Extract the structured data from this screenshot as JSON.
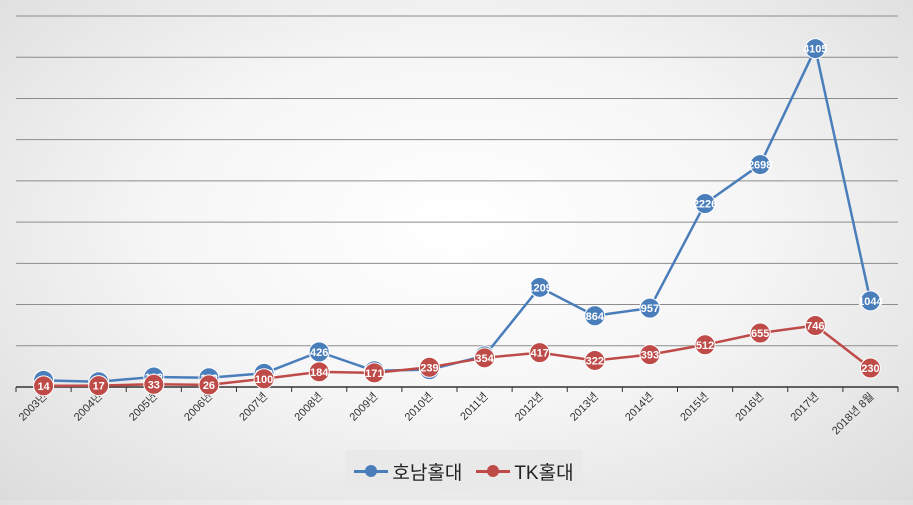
{
  "chart_data": {
    "type": "line",
    "categories": [
      "2003년",
      "2004년",
      "2005년",
      "2006년",
      "2007년",
      "2008년",
      "2009년",
      "2010년",
      "2011년",
      "2012년",
      "2013년",
      "2014년",
      "2015년",
      "2016년",
      "2017년",
      "2018년 8월"
    ],
    "series": [
      {
        "name": "호남홀대",
        "color": "#4a7ebb",
        "values": [
          81,
          64,
          122,
          112,
          166,
          426,
          197,
          211,
          378,
          1209,
          864,
          957,
          2226,
          2698,
          4105,
          1044
        ]
      },
      {
        "name": "TK홀대",
        "color": "#be4b48",
        "values": [
          14,
          17,
          33,
          26,
          100,
          184,
          171,
          239,
          354,
          417,
          322,
          393,
          512,
          655,
          746,
          230
        ]
      }
    ],
    "ylim": [
      0,
      4500
    ],
    "ygrid_step": 500,
    "grid": true,
    "legend_position": "bottom",
    "data_labels": true
  }
}
